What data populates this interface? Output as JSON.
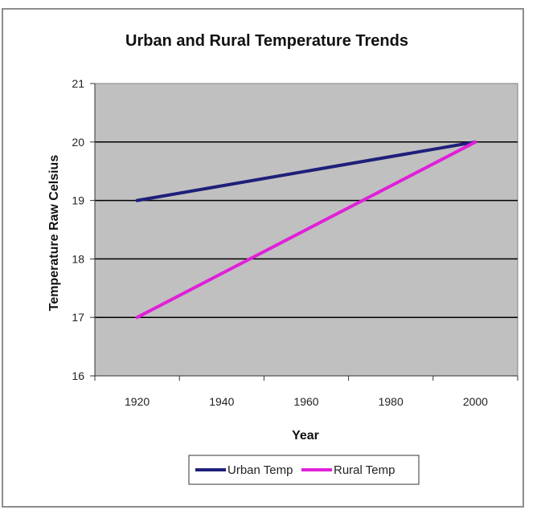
{
  "chart_data": {
    "type": "line",
    "title": "Urban and Rural Temperature Trends",
    "xlabel": "Year",
    "ylabel": "Temperature Raw Celsius",
    "categories": [
      "1920",
      "1940",
      "1960",
      "1980",
      "2000"
    ],
    "x": [
      1920,
      2000
    ],
    "series": [
      {
        "name": "Urban Temp",
        "values": [
          19,
          20
        ],
        "color": "#1f1f7a"
      },
      {
        "name": "Rural Temp",
        "values": [
          17,
          20
        ],
        "color": "#e020d8"
      }
    ],
    "ylim": [
      16,
      21
    ],
    "yticks": [
      16,
      17,
      18,
      19,
      20,
      21
    ],
    "grid": true,
    "plot_background": "#c0c0c0",
    "legend_position": "bottom"
  }
}
